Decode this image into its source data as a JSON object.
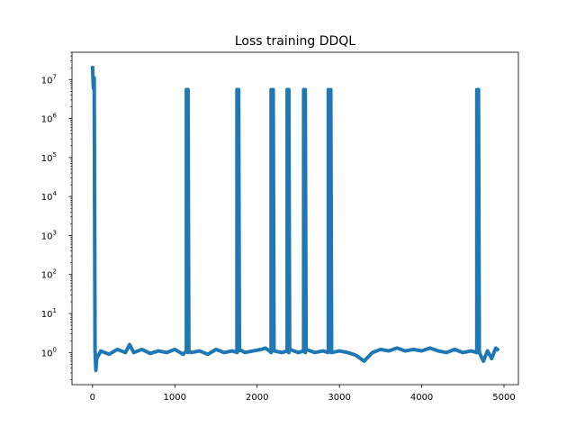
{
  "chart_data": {
    "type": "line",
    "title": "Loss training DDQL",
    "xlabel": "",
    "ylabel": "",
    "yscale": "log",
    "xlim": [
      -250,
      5175
    ],
    "ylim": [
      0.15,
      50000000
    ],
    "grid": false,
    "legend": "none",
    "x_ticks": [
      {
        "value": 0,
        "label": "0"
      },
      {
        "value": 1000,
        "label": "1000"
      },
      {
        "value": 2000,
        "label": "2000"
      },
      {
        "value": 3000,
        "label": "3000"
      },
      {
        "value": 4000,
        "label": "4000"
      },
      {
        "value": 5000,
        "label": "5000"
      }
    ],
    "y_ticks": [
      {
        "value": 1,
        "base": "10",
        "exp": "0"
      },
      {
        "value": 10,
        "base": "10",
        "exp": "1"
      },
      {
        "value": 100,
        "base": "10",
        "exp": "2"
      },
      {
        "value": 1000,
        "base": "10",
        "exp": "3"
      },
      {
        "value": 10000,
        "base": "10",
        "exp": "4"
      },
      {
        "value": 100000,
        "base": "10",
        "exp": "5"
      },
      {
        "value": 1000000,
        "base": "10",
        "exp": "6"
      },
      {
        "value": 10000000,
        "base": "10",
        "exp": "7"
      }
    ],
    "series": [
      {
        "color": "#1f77b4",
        "points": [
          [
            0,
            20000000
          ],
          [
            10,
            6000000
          ],
          [
            20,
            11000000
          ],
          [
            30,
            1.2
          ],
          [
            40,
            0.35
          ],
          [
            50,
            0.7
          ],
          [
            100,
            1.1
          ],
          [
            200,
            0.9
          ],
          [
            300,
            1.2
          ],
          [
            400,
            1.0
          ],
          [
            450,
            1.6
          ],
          [
            500,
            1.0
          ],
          [
            600,
            1.2
          ],
          [
            700,
            0.95
          ],
          [
            800,
            1.1
          ],
          [
            900,
            1.0
          ],
          [
            1000,
            1.2
          ],
          [
            1100,
            0.9
          ],
          [
            1140,
            1.1
          ],
          [
            1140,
            5500000
          ],
          [
            1160,
            1.0
          ],
          [
            1160,
            5500000
          ],
          [
            1170,
            1.1
          ],
          [
            1200,
            1.0
          ],
          [
            1300,
            1.1
          ],
          [
            1400,
            0.9
          ],
          [
            1500,
            1.2
          ],
          [
            1600,
            1.0
          ],
          [
            1700,
            1.1
          ],
          [
            1755,
            1.0
          ],
          [
            1755,
            5500000
          ],
          [
            1775,
            1.1
          ],
          [
            1775,
            5500000
          ],
          [
            1785,
            1.2
          ],
          [
            1850,
            1.0
          ],
          [
            1950,
            1.1
          ],
          [
            2050,
            1.2
          ],
          [
            2100,
            1.3
          ],
          [
            2150,
            1.1
          ],
          [
            2170,
            1.0
          ],
          [
            2170,
            5500000
          ],
          [
            2195,
            1.2
          ],
          [
            2195,
            5500000
          ],
          [
            2205,
            1.1
          ],
          [
            2300,
            1.0
          ],
          [
            2365,
            1.1
          ],
          [
            2365,
            5500000
          ],
          [
            2385,
            1.0
          ],
          [
            2385,
            5500000
          ],
          [
            2395,
            1.2
          ],
          [
            2500,
            1.0
          ],
          [
            2565,
            1.1
          ],
          [
            2565,
            5500000
          ],
          [
            2585,
            1.0
          ],
          [
            2585,
            5500000
          ],
          [
            2595,
            1.2
          ],
          [
            2700,
            1.0
          ],
          [
            2800,
            1.1
          ],
          [
            2865,
            1.0
          ],
          [
            2865,
            5500000
          ],
          [
            2895,
            1.1
          ],
          [
            2895,
            5500000
          ],
          [
            2905,
            1.0
          ],
          [
            3000,
            1.1
          ],
          [
            3100,
            1.0
          ],
          [
            3200,
            0.85
          ],
          [
            3300,
            0.6
          ],
          [
            3400,
            1.0
          ],
          [
            3500,
            1.2
          ],
          [
            3600,
            1.1
          ],
          [
            3700,
            1.3
          ],
          [
            3800,
            1.1
          ],
          [
            3900,
            1.2
          ],
          [
            4000,
            1.1
          ],
          [
            4100,
            1.3
          ],
          [
            4200,
            1.1
          ],
          [
            4300,
            1.0
          ],
          [
            4400,
            1.2
          ],
          [
            4500,
            1.0
          ],
          [
            4600,
            1.1
          ],
          [
            4670,
            1.0
          ],
          [
            4670,
            5500000
          ],
          [
            4690,
            1.1
          ],
          [
            4690,
            5500000
          ],
          [
            4700,
            1.0
          ],
          [
            4750,
            0.6
          ],
          [
            4800,
            1.1
          ],
          [
            4850,
            0.7
          ],
          [
            4900,
            1.3
          ],
          [
            4920,
            1.2
          ]
        ]
      }
    ]
  }
}
